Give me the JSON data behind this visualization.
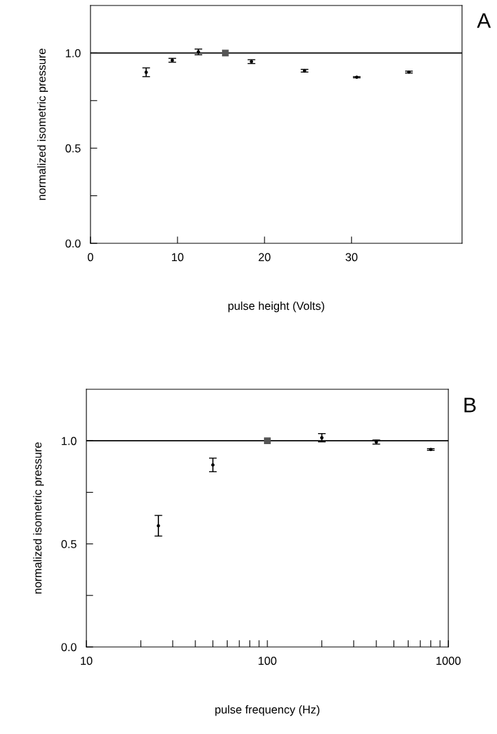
{
  "chart_data": [
    {
      "type": "scatter",
      "xlabel": "pulse height (Volts)",
      "ylabel": "normalized isometric pressure",
      "annotations": [
        "A"
      ],
      "xlim": [
        0,
        42.7
      ],
      "xticks": [
        0,
        10,
        20,
        30
      ],
      "ylim": [
        0,
        1.25
      ],
      "yticks": [
        {
          "value": 0,
          "label": "0.0"
        },
        {
          "value": 0.25,
          "label": null
        },
        {
          "value": 0.5,
          "label": "0.5"
        },
        {
          "value": 0.75,
          "label": null
        },
        {
          "value": 1.0,
          "label": "1.0"
        }
      ],
      "ref_lines": [
        {
          "axis": "y",
          "value": 1.0,
          "color": "#000000"
        }
      ],
      "series": [
        {
          "marker": "circle",
          "color": "#000000",
          "x": [
            6.4,
            9.4,
            12.4,
            18.5,
            24.6,
            30.6,
            36.6
          ],
          "values": [
            0.899,
            0.962,
            1.006,
            0.955,
            0.907,
            0.873,
            0.9
          ],
          "errors": [
            0.023,
            0.01,
            0.015,
            0.01,
            0.007,
            0.003,
            0.005
          ]
        },
        {
          "marker": "square",
          "color": "#555555",
          "x": [
            15.5
          ],
          "values": [
            1.0
          ]
        }
      ]
    },
    {
      "type": "scatter",
      "xlabel": "pulse frequency (Hz)",
      "ylabel": "normalized isometric pressure",
      "annotations": [
        "B"
      ],
      "log": "x",
      "xlim": [
        10,
        1000
      ],
      "xticks": [
        10,
        {
          "value": 20,
          "label": null
        },
        {
          "value": 30,
          "label": null
        },
        {
          "value": 40,
          "label": null
        },
        {
          "value": 50,
          "label": null
        },
        {
          "value": 60,
          "label": null
        },
        {
          "value": 70,
          "label": null
        },
        {
          "value": 80,
          "label": null
        },
        {
          "value": 90,
          "label": null
        },
        100,
        {
          "value": 200,
          "label": null
        },
        {
          "value": 300,
          "label": null
        },
        {
          "value": 400,
          "label": null
        },
        {
          "value": 500,
          "label": null
        },
        {
          "value": 600,
          "label": null
        },
        {
          "value": 700,
          "label": null
        },
        {
          "value": 800,
          "label": null
        },
        {
          "value": 900,
          "label": null
        },
        1000
      ],
      "ylim": [
        0,
        1.25
      ],
      "yticks": [
        {
          "value": 0,
          "label": "0.0"
        },
        {
          "value": 0.25,
          "label": null
        },
        {
          "value": 0.5,
          "label": "0.5"
        },
        {
          "value": 0.75,
          "label": null
        },
        {
          "value": 1.0,
          "label": "1.0"
        }
      ],
      "ref_lines": [
        {
          "axis": "y",
          "value": 1.0,
          "color": "#000000"
        }
      ],
      "series": [
        {
          "marker": "circle",
          "color": "#000000",
          "x": [
            25,
            50,
            200,
            400,
            800
          ],
          "values": [
            0.588,
            0.883,
            1.015,
            0.994,
            0.958
          ],
          "errors": [
            0.05,
            0.033,
            0.02,
            0.01,
            0.004
          ]
        },
        {
          "marker": "square",
          "color": "#555555",
          "x": [
            100
          ],
          "values": [
            1.0
          ]
        }
      ]
    }
  ]
}
